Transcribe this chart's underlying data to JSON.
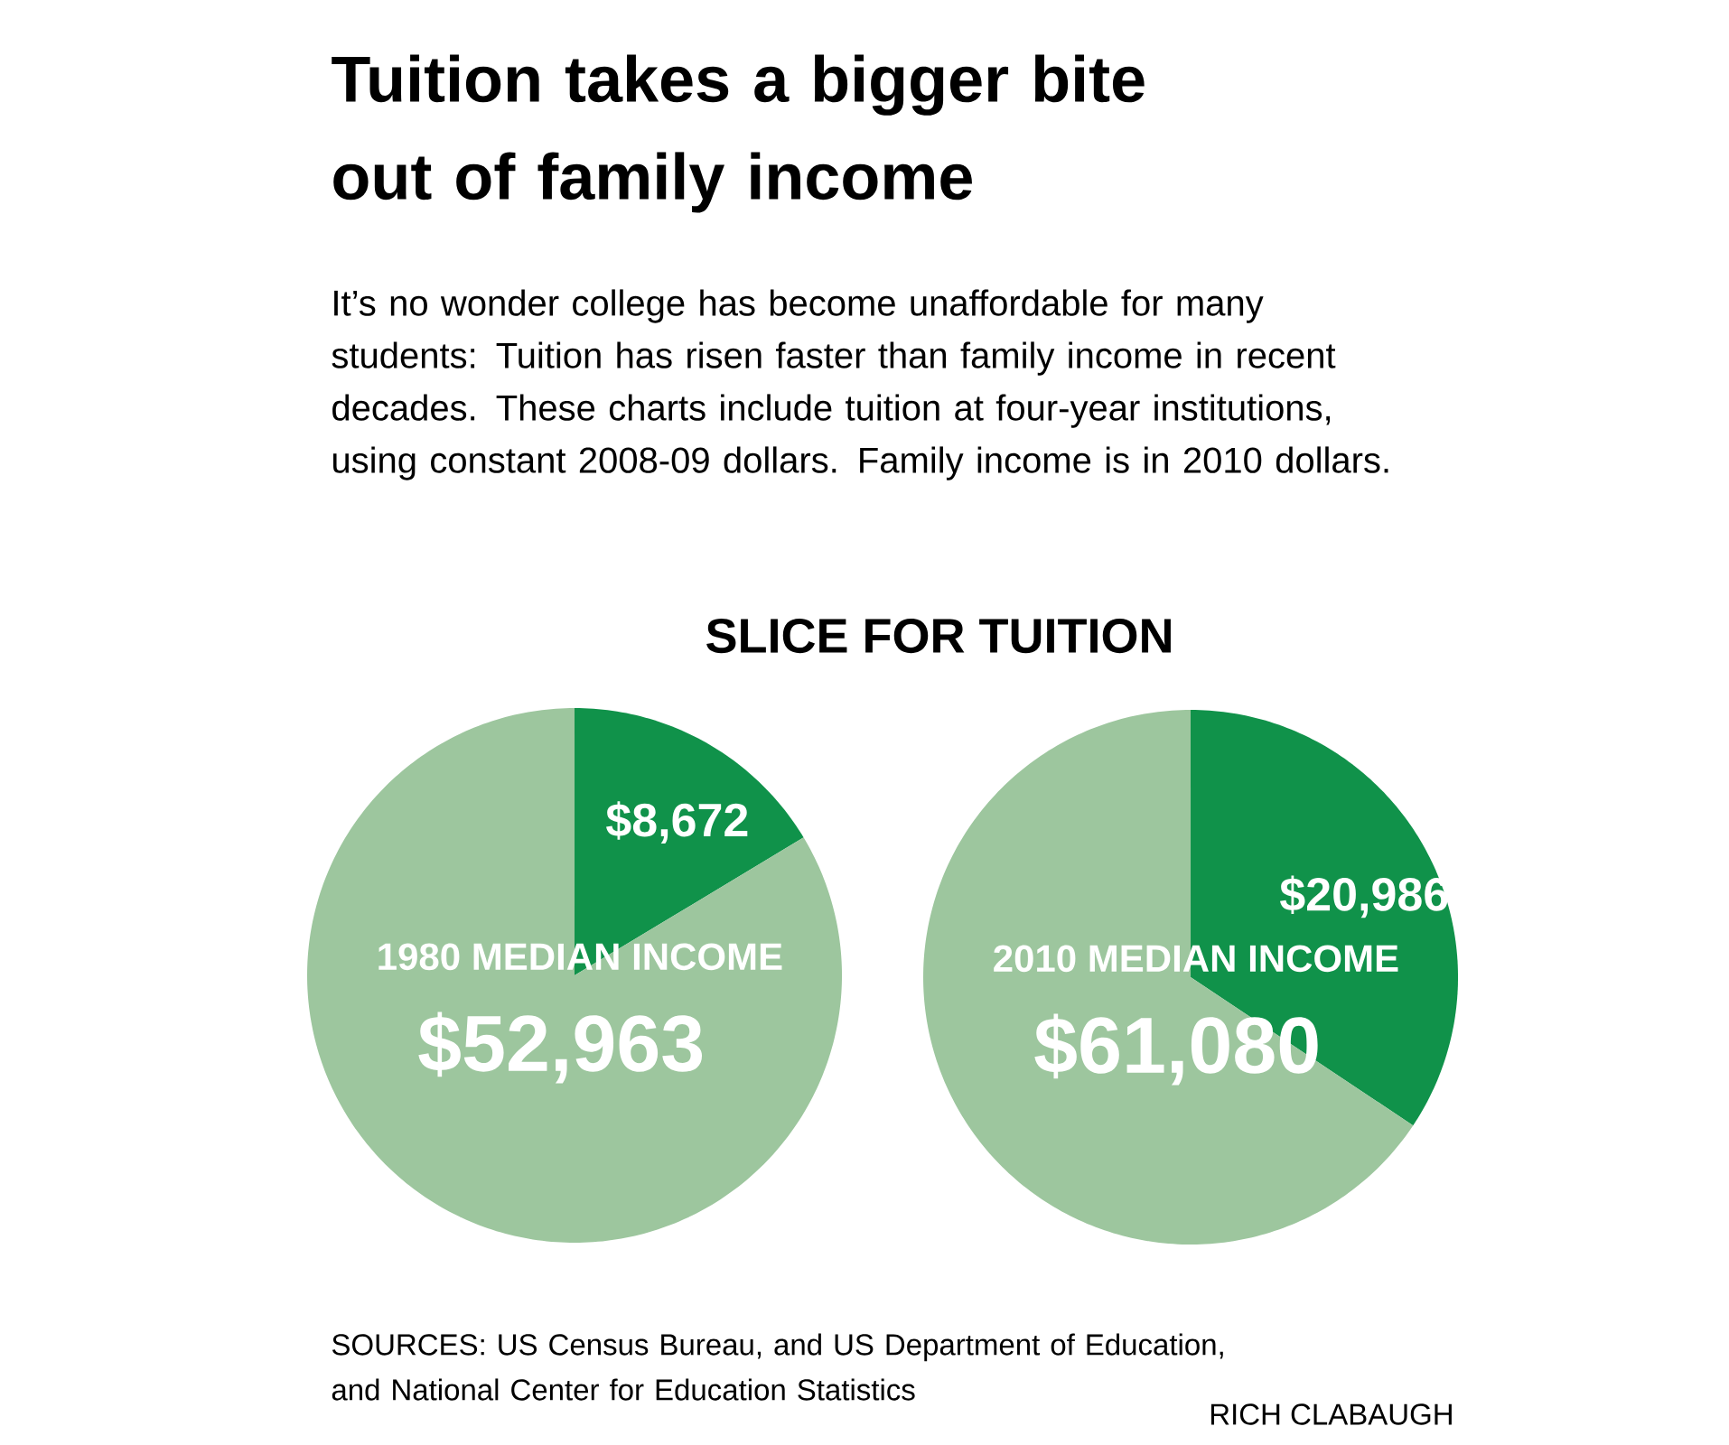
{
  "chart_data": [
    {
      "type": "pie",
      "title": "Tuition takes a bigger bite out of family income",
      "subtitle": "It’s no wonder college has become unaffordable for many students: Tuition has risen faster than family income in recent decades. These charts include tuition at four-year institutions, using constant 2008-09 dollars. Family income is in 2010 dollars.",
      "categories": [
        null,
        null
      ],
      "values": [
        8672,
        44291
      ],
      "colors": [
        "#10924a",
        "#9dc69e"
      ],
      "value_labels": [
        "$8,672",
        null
      ],
      "annotations": [
        "SLICE FOR TUITION",
        "1980 MEDIAN INCOME",
        "$52,963"
      ]
    },
    {
      "type": "pie",
      "categories": [
        null,
        null
      ],
      "values": [
        20986,
        40094
      ],
      "colors": [
        "#10924a",
        "#9dc69e"
      ],
      "value_labels": [
        "$20,986",
        null
      ],
      "annotations": [
        "2010 MEDIAN INCOME",
        "$61,080",
        "SOURCES: US Census Bureau, and US Department of Education, and National Center for Education Statistics",
        "RICH CLABAUGH"
      ]
    }
  ]
}
